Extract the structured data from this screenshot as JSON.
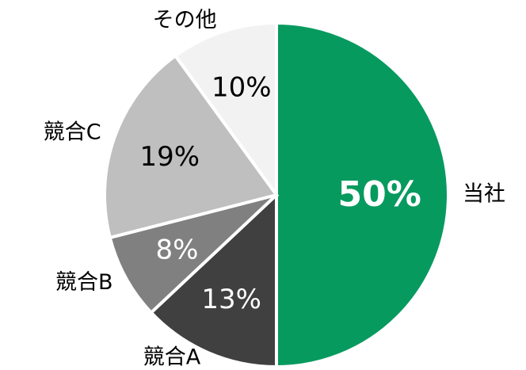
{
  "chart_data": {
    "type": "pie",
    "categories": [
      "当社",
      "競合A",
      "競合B",
      "競合C",
      "その他"
    ],
    "values": [
      50,
      13,
      8,
      19,
      10
    ],
    "value_labels": [
      "50%",
      "13%",
      "8%",
      "19%",
      "10%"
    ],
    "colors": [
      "#079a5f",
      "#404040",
      "#808080",
      "#bfbfbf",
      "#f2f2f2"
    ]
  }
}
